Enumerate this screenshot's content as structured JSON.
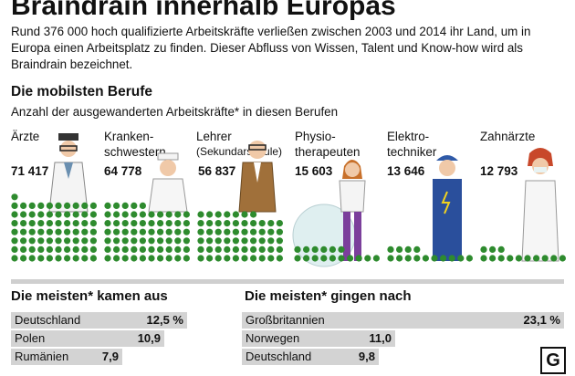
{
  "title": "Braindrain innerhalb Europas",
  "intro": "Rund 376 000 hoch qualifizierte Arbeitskräfte verließen zwischen 2003 und 2014 ihr Land, um in Europa einen Arbeitsplatz zu finden. Dieser Abfluss von Wissen, Talent und Know-how wird als Braindrain bezeichnet.",
  "jobs_section": {
    "heading": "Die mobilsten Berufe",
    "subheading": "Anzahl der ausgewanderten Arbeitskräfte* in diesen Berufen",
    "jobs": [
      {
        "line1": "Ärzte",
        "line2": "",
        "count": "71 417"
      },
      {
        "line1": "Kranken-",
        "line2": "schwestern",
        "count": "64 778"
      },
      {
        "line1": "Lehrer",
        "line2": "(Sekundarschule)",
        "count": "56 837"
      },
      {
        "line1": "Physio-",
        "line2": "therapeuten",
        "count": "15 603"
      },
      {
        "line1": "Elektro-",
        "line2": "techniker",
        "count": "13 646"
      },
      {
        "line1": "Zahnärzte",
        "line2": "",
        "count": "12 793"
      }
    ]
  },
  "from_section": {
    "heading": "Die meisten* kamen aus",
    "rows": [
      {
        "label": "Deutschland",
        "value": "12,5 %",
        "num": 12.5
      },
      {
        "label": "Polen",
        "value": "10,9",
        "num": 10.9
      },
      {
        "label": "Rumänien",
        "value": "7,9",
        "num": 7.9
      }
    ]
  },
  "to_section": {
    "heading": "Die meisten* gingen nach",
    "rows": [
      {
        "label": "Großbritannien",
        "value": "23,1 %",
        "num": 23.1
      },
      {
        "label": "Norwegen",
        "value": "11,0",
        "num": 11.0
      },
      {
        "label": "Deutschland",
        "value": "9,8",
        "num": 9.8
      }
    ]
  },
  "logo": "G",
  "colors": {
    "dot": "#2e8b2e",
    "bar": "#d3d3d3"
  },
  "chart_data": [
    {
      "type": "bar",
      "title": "Die mobilsten Berufe",
      "subtitle": "Anzahl der ausgewanderten Arbeitskräfte* in diesen Berufen",
      "categories": [
        "Ärzte",
        "Krankenschwestern",
        "Lehrer (Sekundarschule)",
        "Physiotherapeuten",
        "Elektrotechniker",
        "Zahnärzte"
      ],
      "values": [
        71417,
        64778,
        56837,
        15603,
        13646,
        12793
      ]
    },
    {
      "type": "bar",
      "title": "Die meisten* kamen aus",
      "categories": [
        "Deutschland",
        "Polen",
        "Rumänien"
      ],
      "values": [
        12.5,
        10.9,
        7.9
      ]
    },
    {
      "type": "bar",
      "title": "Die meisten* gingen nach",
      "categories": [
        "Großbritannien",
        "Norwegen",
        "Deutschland"
      ],
      "values": [
        23.1,
        11.0,
        9.8
      ]
    }
  ]
}
